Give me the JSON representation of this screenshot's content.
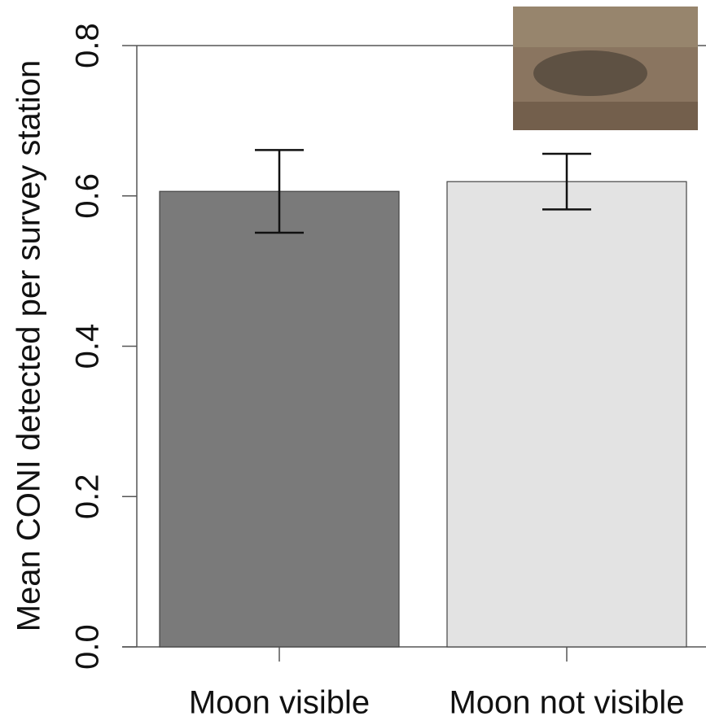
{
  "chart_data": {
    "type": "bar",
    "ylabel": "Mean CONI detected per survey station",
    "categories": [
      "Moon visible",
      "Moon not visible"
    ],
    "values": [
      0.606,
      0.619
    ],
    "errors": [
      0.055,
      0.037
    ],
    "colors": [
      "#7a7a7a",
      "#e3e3e3"
    ],
    "ylim": [
      0,
      0.8
    ],
    "yticks": [
      {
        "value": 0,
        "label": "0.0"
      },
      0.2,
      0.4,
      0.6,
      0.8
    ]
  }
}
